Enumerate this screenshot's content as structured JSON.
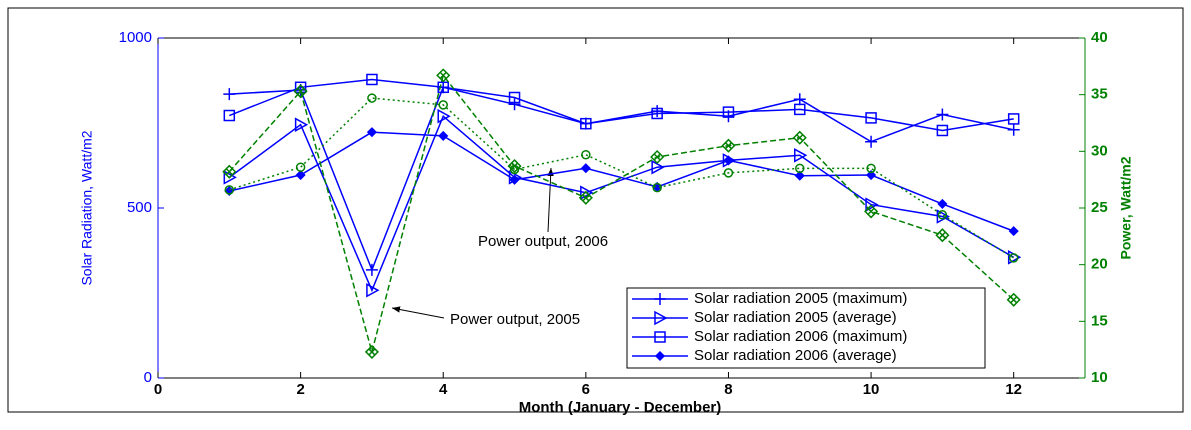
{
  "chart_data": {
    "type": "line",
    "x_label": "Month (January - December)",
    "y_label": "Solar Radiation, Watt/m2",
    "y2_label": "Power, Watt/m2",
    "x": [
      1,
      2,
      3,
      4,
      5,
      6,
      7,
      8,
      9,
      10,
      11,
      12
    ],
    "xlim": [
      0,
      13
    ],
    "xticks": [
      0,
      2,
      4,
      6,
      8,
      10,
      12
    ],
    "ylim": [
      0,
      1000
    ],
    "yticks": [
      0,
      500,
      1000
    ],
    "y2lim": [
      10,
      40
    ],
    "y2ticks": [
      10,
      15,
      20,
      25,
      30,
      35,
      40
    ],
    "y_color": "#0000ff",
    "y2_color": "#008000",
    "series": [
      {
        "name": "Solar radiation 2005 (maximum)",
        "color": "#0000ff",
        "marker": "plus",
        "dash": "solid",
        "values": [
          835,
          847,
          318,
          855,
          805,
          748,
          785,
          770,
          820,
          695,
          775,
          730
        ]
      },
      {
        "name": "Solar radiation 2005 (average)",
        "color": "#0000ff",
        "marker": "triangle",
        "dash": "solid",
        "values": [
          590,
          745,
          258,
          770,
          590,
          545,
          620,
          640,
          655,
          510,
          475,
          355
        ]
      },
      {
        "name": "Solar radiation 2006 (maximum)",
        "color": "#0000ff",
        "marker": "square",
        "dash": "solid",
        "values": [
          772,
          855,
          878,
          855,
          825,
          748,
          778,
          782,
          790,
          765,
          728,
          762
        ]
      },
      {
        "name": "Solar radiation 2006 (average)",
        "color": "#0000ff",
        "marker": "diamond",
        "dash": "solid",
        "values": [
          550,
          597,
          723,
          712,
          583,
          617,
          562,
          640,
          595,
          597,
          512,
          432
        ]
      },
      {
        "color": "#008000",
        "marker": "circle",
        "dash": "dotted",
        "axis": "y2",
        "values": [
          26.6,
          28.6,
          34.7,
          34.1,
          28.4,
          29.7,
          26.8,
          28.1,
          28.5,
          28.5,
          24.4,
          20.6
        ]
      },
      {
        "color": "#008000",
        "marker": "xdiamond",
        "dash": "dashed",
        "axis": "y2",
        "values": [
          28.2,
          35.3,
          12.3,
          36.7,
          28.7,
          25.9,
          29.5,
          30.5,
          31.2,
          24.7,
          22.6,
          16.9
        ]
      }
    ],
    "annotations": [
      "Power output, 2006",
      "Power output, 2005"
    ],
    "legend": "lower right"
  }
}
